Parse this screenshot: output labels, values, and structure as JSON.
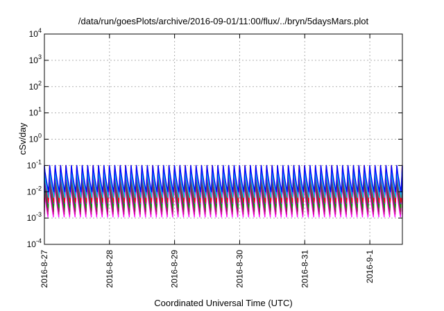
{
  "chart_data": {
    "type": "line",
    "title": "/data/run/goesPlots/archive/2016-09-01/11:00/flux/../bryn/5daysMars.plot",
    "xlabel": "Coordinated Universal Time (UTC)",
    "ylabel": "cSv/day",
    "yscale": "log",
    "ylim": [
      0.0001,
      10000
    ],
    "xlim": [
      "2016-08-27T00:00",
      "2016-09-01T12:00"
    ],
    "grid": true,
    "y_ticks": [
      {
        "value": 0.0001,
        "base": "10",
        "exp": "-4"
      },
      {
        "value": 0.001,
        "base": "10",
        "exp": "-3"
      },
      {
        "value": 0.01,
        "base": "10",
        "exp": "-2"
      },
      {
        "value": 0.1,
        "base": "10",
        "exp": "-1"
      },
      {
        "value": 1,
        "base": "10",
        "exp": "0"
      },
      {
        "value": 10,
        "base": "10",
        "exp": "1"
      },
      {
        "value": 100,
        "base": "10",
        "exp": "2"
      },
      {
        "value": 1000,
        "base": "10",
        "exp": "3"
      },
      {
        "value": 10000,
        "base": "10",
        "exp": "4"
      }
    ],
    "x_ticks": [
      {
        "value": "2016-08-27",
        "label": "2016-8-27"
      },
      {
        "value": "2016-08-28",
        "label": "2016-8-28"
      },
      {
        "value": "2016-08-29",
        "label": "2016-8-29"
      },
      {
        "value": "2016-08-30",
        "label": "2016-8-30"
      },
      {
        "value": "2016-08-31",
        "label": "2016-8-31"
      },
      {
        "value": "2016-09-01",
        "label": "2016-9-1"
      }
    ],
    "cycle_period_hours": 2,
    "cycle_shape": "sawtooth: sharp rise to peak then decay to trough, repeating every ~2 hours",
    "series": [
      {
        "color": "#ff00ff",
        "peak": 0.02,
        "trough": 0.0011
      },
      {
        "color": "#c71585",
        "peak": 0.025,
        "trough": 0.0014
      },
      {
        "color": "#8b2252",
        "peak": 0.03,
        "trough": 0.0018
      },
      {
        "color": "#00a000",
        "peak": 0.035,
        "trough": 0.0025
      },
      {
        "color": "#9400d3",
        "peak": 0.045,
        "trough": 0.0035
      },
      {
        "color": "#ff0000",
        "peak": 0.1,
        "trough": 0.004
      },
      {
        "color": "#00ced1",
        "peak": 0.06,
        "trough": 0.006
      },
      {
        "color": "#1e90ff",
        "peak": 0.1,
        "trough": 0.008
      },
      {
        "color": "#0000ff",
        "peak": 0.1,
        "trough": 0.01
      }
    ]
  }
}
